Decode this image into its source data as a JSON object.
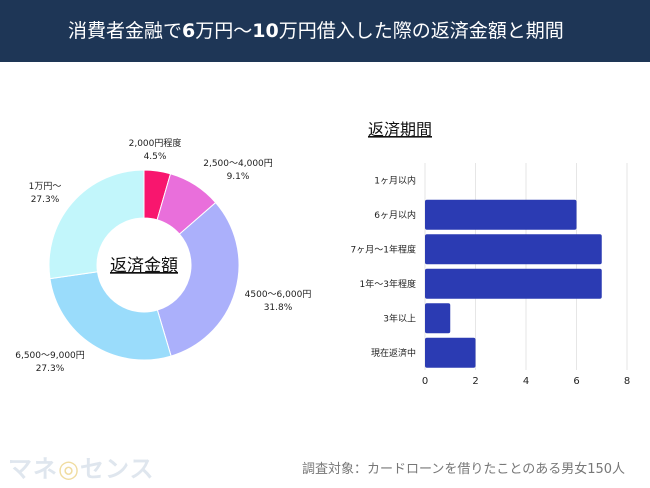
{
  "header": {
    "title_parts": [
      "消費者金融で",
      "6",
      "万円～",
      "10",
      "万円借入した際の返済金額と期間"
    ]
  },
  "chart_data": [
    {
      "type": "pie",
      "title": "返済金額",
      "donut": true,
      "slices": [
        {
          "label": "2,000円程度",
          "value": 4.5,
          "display": "4.5%",
          "color": "#f8166e"
        },
        {
          "label": "2,500～4,000円",
          "value": 9.1,
          "display": "9.1%",
          "color": "#e96fdb"
        },
        {
          "label": "4500～6,000円",
          "value": 31.8,
          "display": "31.8%",
          "color": "#abb0fb"
        },
        {
          "label": "6,500～9,000円",
          "value": 27.3,
          "display": "27.3%",
          "color": "#9adcfb"
        },
        {
          "label": "1万円～",
          "value": 27.3,
          "display": "27.3%",
          "color": "#c2f6fb"
        }
      ]
    },
    {
      "type": "bar",
      "orientation": "horizontal",
      "title": "返済期間",
      "categories": [
        "1ヶ月以内",
        "6ヶ月以内",
        "7ヶ月～1年程度",
        "1年～3年程度",
        "3年以上",
        "現在返済中"
      ],
      "values": [
        0,
        6,
        7,
        7,
        1,
        2
      ],
      "xlim": [
        0,
        8
      ],
      "xticks": [
        "0",
        "2",
        "4",
        "6",
        "8"
      ],
      "grid": true,
      "color": "#2b3bb3"
    }
  ],
  "footer": {
    "note": "調査対象：カードローンを借りたことのある男女150人",
    "logo": "マネーセンス"
  }
}
